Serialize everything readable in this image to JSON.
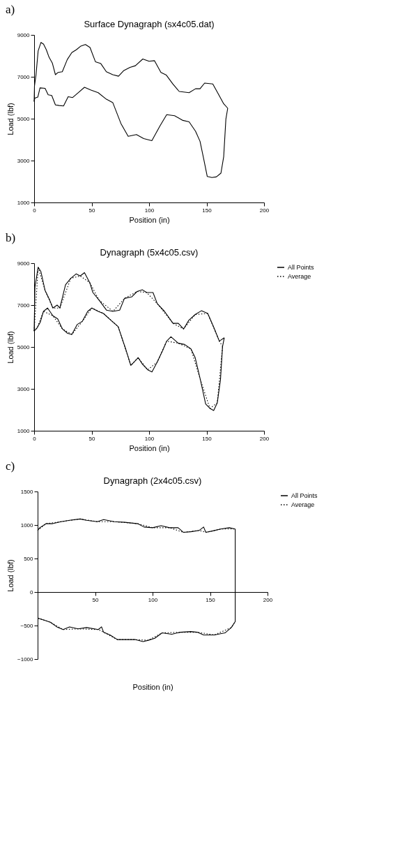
{
  "chart_data": [
    {
      "type": "line",
      "title": "Surface Dynagraph (sx4c05.dat)",
      "xlabel": "Position (in)",
      "ylabel": "Load (lbf)",
      "annotations": [
        "a)"
      ],
      "xlim": [
        0,
        200
      ],
      "xticks": [
        0,
        50,
        100,
        150,
        200
      ],
      "ylim": [
        1000,
        9000
      ],
      "yticks": [
        1000,
        3000,
        5000,
        7000,
        9000
      ],
      "grid": false,
      "legend": false,
      "series": [
        {
          "color": "#000000",
          "line_style": "solid",
          "x": [
            0,
            0.3,
            1.6,
            3.5,
            5.9,
            8.2,
            10.6,
            13,
            15.8,
            18.5,
            20.9,
            24.5,
            28.8,
            32.8,
            36.7,
            40.7,
            44.6,
            48.6,
            53.3,
            58,
            62.8,
            68.4,
            73.4,
            77.8,
            83.4,
            88.1,
            94.5,
            100,
            104.7,
            110.3,
            115,
            120.6,
            126.2,
            134.8,
            140.4,
            144.3,
            148.3,
            155.4,
            160.1,
            164.9,
            168.4
          ],
          "values": [
            5820,
            6560,
            7080,
            8240,
            8640,
            8560,
            8290,
            7930,
            7660,
            7100,
            7210,
            7240,
            7820,
            8160,
            8290,
            8470,
            8540,
            8400,
            7720,
            7630,
            7240,
            7100,
            7030,
            7290,
            7450,
            7530,
            7850,
            7740,
            7770,
            7210,
            7080,
            6660,
            6300,
            6240,
            6430,
            6430,
            6700,
            6660,
            6190,
            5710,
            5500
          ]
        },
        {
          "color": "#000000",
          "line_style": "solid",
          "x": [
            0,
            0.6,
            3.2,
            5.1,
            9.5,
            12.2,
            15.3,
            18.5,
            21.7,
            25.6,
            29.6,
            33.5,
            38.3,
            43.8,
            49.4,
            55.7,
            62.8,
            68.4,
            75.5,
            81.8,
            89,
            95.3,
            102.4,
            109.5,
            115.3,
            122.2,
            129.3,
            134.8,
            140.4,
            144.3,
            147.5,
            150.6,
            154.6,
            158.5,
            162.5,
            164.9,
            166.8,
            168.4
          ],
          "values": [
            5820,
            5980,
            6030,
            6470,
            6450,
            6140,
            6110,
            5660,
            5630,
            5610,
            6050,
            6010,
            6240,
            6500,
            6370,
            6240,
            5930,
            5770,
            4770,
            4160,
            4240,
            4050,
            3950,
            4660,
            5190,
            5140,
            4920,
            4850,
            4400,
            3920,
            3080,
            2240,
            2190,
            2220,
            2400,
            3190,
            4980,
            5500
          ]
        }
      ]
    },
    {
      "type": "line",
      "title": "Dynagraph (5x4c05.csv)",
      "xlabel": "Position (in)",
      "ylabel": "Load (lbf)",
      "annotations": [
        "b)"
      ],
      "xlim": [
        0,
        200
      ],
      "xticks": [
        0,
        50,
        100,
        150,
        200
      ],
      "ylim": [
        1000,
        9000
      ],
      "yticks": [
        1000,
        3000,
        5000,
        7000,
        9000
      ],
      "grid": false,
      "legend": "right",
      "series": [
        {
          "name": "All Points",
          "color": "#000000",
          "line_style": "solid",
          "x": [
            0,
            0.7,
            3.5,
            5.9,
            9.5,
            13.6,
            16.3,
            20,
            22.4,
            27.3,
            31.9,
            36.5,
            40.1,
            43.8,
            48.4,
            51.1,
            56.6,
            62.9,
            68.6,
            74.4,
            78.6,
            84.8,
            89.6,
            94.2,
            97.9,
            103.4,
            107.1,
            113.4,
            120.8,
            125.4,
            130,
            134.6,
            140.1,
            145.5,
            151,
            156.5,
            161.1,
            165.4
          ],
          "values": [
            5760,
            7860,
            8810,
            8600,
            7700,
            7230,
            6860,
            7000,
            6860,
            7970,
            8280,
            8490,
            8390,
            8550,
            8070,
            7600,
            7230,
            6760,
            6700,
            6760,
            7320,
            7390,
            7650,
            7730,
            7600,
            7600,
            7070,
            6700,
            6130,
            6130,
            5860,
            6280,
            6550,
            6730,
            6600,
            5910,
            5280,
            5440
          ]
        },
        {
          "color": "#000000",
          "line_style": "solid",
          "x": [
            0,
            2.6,
            5.3,
            8.1,
            11.7,
            16.3,
            20.5,
            24.6,
            29.1,
            32.8,
            37.4,
            42,
            46.6,
            50.2,
            55.7,
            60.3,
            66.7,
            73.1,
            79.6,
            84.1,
            86.9,
            90.5,
            94.2,
            98.8,
            102.5,
            107.1,
            111.6,
            115.3,
            119,
            125.4,
            130.9,
            136.4,
            140.1,
            144.6,
            149.2,
            152.9,
            156.2,
            159.3,
            162.1,
            163.9,
            165.4
          ],
          "values": [
            5760,
            5910,
            6180,
            6700,
            6860,
            6490,
            6340,
            5860,
            5650,
            5600,
            6070,
            6230,
            6700,
            6860,
            6700,
            6600,
            6280,
            5970,
            4910,
            4120,
            4280,
            4490,
            4180,
            3910,
            3810,
            4280,
            4810,
            5280,
            5490,
            5180,
            5120,
            4910,
            4490,
            3440,
            2280,
            2070,
            1970,
            2330,
            3440,
            5020,
            5440
          ]
        },
        {
          "name": "Average",
          "color": "#000000",
          "line_style": "dotted",
          "x": [
            0,
            3.5,
            9.5,
            16.3,
            22.4,
            31.9,
            40.1,
            48.4,
            56.6,
            68.6,
            78.6,
            89.6,
            97.9,
            107.1,
            120.8,
            130,
            140.1,
            151,
            161.1,
            163.9
          ],
          "values": [
            5760,
            8810,
            7700,
            6860,
            6860,
            8280,
            8390,
            8070,
            7230,
            6700,
            7320,
            7650,
            7600,
            7070,
            6130,
            5860,
            6550,
            6600,
            5280,
            5020
          ]
        },
        {
          "color": "#000000",
          "line_style": "dotted",
          "x": [
            0,
            2.6,
            8.1,
            16.3,
            24.6,
            32.8,
            42,
            50.2,
            60.3,
            73.1,
            84.1,
            90.5,
            98.8,
            107.1,
            115.3,
            125.4,
            136.4,
            144.6,
            152.9,
            159.3,
            163.9
          ],
          "values": [
            5760,
            5910,
            6700,
            6490,
            5860,
            5600,
            6230,
            6860,
            6600,
            5970,
            4120,
            4490,
            3910,
            4280,
            5280,
            5180,
            4910,
            3440,
            2070,
            2330,
            5020
          ]
        }
      ]
    },
    {
      "type": "line",
      "title": "Dynagraph (2x4c05.csv)",
      "xlabel": "Position (in)",
      "ylabel": "Load (lbf)",
      "annotations": [
        "c)"
      ],
      "xlim": [
        0,
        200
      ],
      "xticks": [
        50,
        100,
        150,
        200
      ],
      "ylim": [
        -1000,
        1500
      ],
      "yticks": [
        -1000,
        -500,
        0,
        500,
        1000,
        1500
      ],
      "grid": false,
      "legend": "right",
      "series": [
        {
          "name": "All Points",
          "color": "#000000",
          "line_style": "solid",
          "x": [
            0,
            1.9,
            7.4,
            13,
            20.4,
            27.8,
            37,
            42.6,
            51.9,
            57.4,
            66.7,
            75.9,
            87,
            92.6,
            100,
            107.4,
            114.8,
            122.2,
            126.9,
            133.3,
            140.7,
            144.4,
            146.3,
            151.9,
            159.3,
            166.7,
            171.9
          ],
          "values": [
            920,
            960,
            1020,
            1020,
            1050,
            1070,
            1090,
            1070,
            1050,
            1080,
            1050,
            1040,
            1020,
            970,
            960,
            990,
            960,
            960,
            890,
            900,
            920,
            970,
            890,
            910,
            940,
            960,
            940
          ]
        },
        {
          "color": "#000000",
          "line_style": "solid",
          "x": [
            0.4,
            5.6,
            11.1,
            16.7,
            22.2,
            27.8,
            35.2,
            42.6,
            52.8,
            55.6,
            57.4,
            63,
            69.4,
            75.9,
            85.2,
            91.7,
            96.3,
            101.9,
            108.3,
            116.7,
            124.1,
            133.3,
            138.9,
            144.4,
            153.7,
            163,
            168.5,
            171.9,
            171.9
          ],
          "values": [
            -390,
            -420,
            -450,
            -520,
            -560,
            -520,
            -550,
            -530,
            -560,
            -520,
            -600,
            -640,
            -710,
            -710,
            -710,
            -740,
            -720,
            -690,
            -610,
            -630,
            -600,
            -590,
            -600,
            -640,
            -640,
            -610,
            -530,
            -440,
            940
          ]
        },
        {
          "name": "Average",
          "color": "#000000",
          "line_style": "dotted",
          "x": [
            0,
            7.4,
            20.4,
            37,
            51.9,
            66.7,
            87,
            100,
            114.8,
            126.9,
            140.7,
            146.3,
            159.3,
            171.9
          ],
          "values": [
            920,
            1020,
            1050,
            1090,
            1050,
            1050,
            1020,
            960,
            960,
            890,
            920,
            890,
            940,
            940
          ]
        },
        {
          "color": "#000000",
          "line_style": "dotted",
          "x": [
            0.4,
            11.1,
            22.2,
            35.2,
            52.8,
            57.4,
            69.4,
            85.2,
            96.3,
            108.3,
            124.1,
            138.9,
            153.7,
            168.5,
            171.9
          ],
          "values": [
            -390,
            -450,
            -560,
            -550,
            -560,
            -600,
            -710,
            -710,
            -720,
            -610,
            -600,
            -600,
            -640,
            -530,
            -440
          ]
        }
      ]
    }
  ]
}
